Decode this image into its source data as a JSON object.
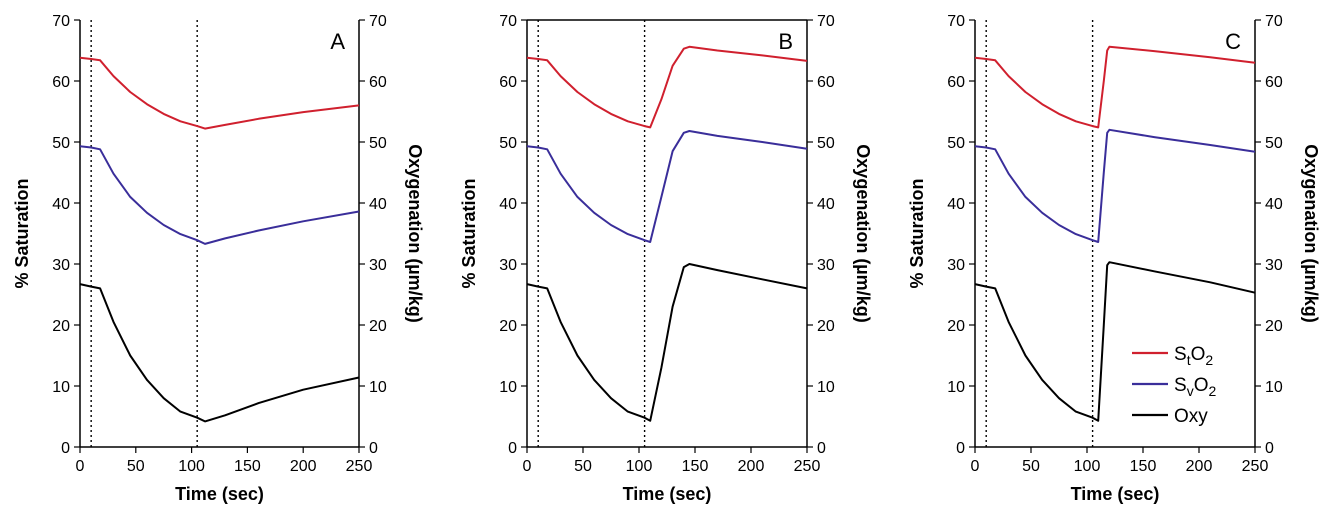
{
  "chart_data": [
    {
      "type": "line",
      "panel_label": "A",
      "xlabel": "Time (sec)",
      "ylabel_left": "% Saturation",
      "ylabel_right": "Oxygenation (µm/kg)",
      "xlim": [
        0,
        250
      ],
      "ylim": [
        0,
        70
      ],
      "xticks": [
        0,
        50,
        100,
        150,
        200,
        250
      ],
      "yticks": [
        0,
        10,
        20,
        30,
        40,
        50,
        60,
        70
      ],
      "vlines": [
        10,
        105
      ],
      "legend": false,
      "series": [
        {
          "key": "sto2",
          "color": "#d0202e",
          "x": [
            0,
            10,
            18,
            30,
            45,
            60,
            75,
            90,
            105,
            112,
            130,
            160,
            200,
            250
          ],
          "y": [
            63.8,
            63.6,
            63.4,
            60.8,
            58.2,
            56.2,
            54.6,
            53.4,
            52.6,
            52.2,
            52.8,
            53.8,
            54.9,
            56.0
          ]
        },
        {
          "key": "svo2",
          "color": "#3a2e9a",
          "x": [
            0,
            10,
            18,
            30,
            45,
            60,
            75,
            90,
            105,
            112,
            130,
            160,
            200,
            250
          ],
          "y": [
            49.3,
            49.1,
            48.8,
            44.8,
            41.0,
            38.4,
            36.4,
            34.9,
            33.9,
            33.3,
            34.2,
            35.5,
            37.0,
            38.6
          ]
        },
        {
          "key": "oxy",
          "color": "#000000",
          "x": [
            0,
            10,
            18,
            30,
            45,
            60,
            75,
            90,
            105,
            112,
            130,
            160,
            200,
            250
          ],
          "y": [
            26.7,
            26.3,
            26.0,
            20.5,
            15.0,
            11.0,
            8.0,
            5.8,
            4.8,
            4.2,
            5.2,
            7.2,
            9.4,
            11.4
          ]
        }
      ]
    },
    {
      "type": "line",
      "panel_label": "B",
      "xlabel": "Time (sec)",
      "ylabel_left": "% Saturation",
      "ylabel_right": "Oxygenation (µm/kg)",
      "xlim": [
        0,
        250
      ],
      "ylim": [
        0,
        70
      ],
      "xticks": [
        0,
        50,
        100,
        150,
        200,
        250
      ],
      "yticks": [
        0,
        10,
        20,
        30,
        40,
        50,
        60,
        70
      ],
      "vlines": [
        10,
        105
      ],
      "legend": false,
      "series": [
        {
          "key": "sto2",
          "color": "#d0202e",
          "x": [
            0,
            10,
            18,
            30,
            45,
            60,
            75,
            90,
            105,
            110,
            120,
            130,
            140,
            145,
            170,
            210,
            250
          ],
          "y": [
            63.8,
            63.6,
            63.4,
            60.8,
            58.2,
            56.2,
            54.6,
            53.4,
            52.6,
            52.4,
            57.0,
            62.5,
            65.3,
            65.6,
            65.0,
            64.2,
            63.3
          ]
        },
        {
          "key": "svo2",
          "color": "#3a2e9a",
          "x": [
            0,
            10,
            18,
            30,
            45,
            60,
            75,
            90,
            105,
            110,
            120,
            130,
            140,
            145,
            170,
            210,
            250
          ],
          "y": [
            49.3,
            49.1,
            48.8,
            44.8,
            41.0,
            38.4,
            36.4,
            34.9,
            33.9,
            33.6,
            41.0,
            48.5,
            51.5,
            51.8,
            51.0,
            50.0,
            48.9
          ]
        },
        {
          "key": "oxy",
          "color": "#000000",
          "x": [
            0,
            10,
            18,
            30,
            45,
            60,
            75,
            90,
            105,
            110,
            120,
            130,
            140,
            145,
            170,
            210,
            250
          ],
          "y": [
            26.7,
            26.3,
            26.0,
            20.5,
            15.0,
            11.0,
            8.0,
            5.8,
            4.8,
            4.3,
            13.0,
            23.0,
            29.5,
            30.0,
            29.0,
            27.5,
            26.0
          ]
        }
      ]
    },
    {
      "type": "line",
      "panel_label": "C",
      "xlabel": "Time (sec)",
      "ylabel_left": "% Saturation",
      "ylabel_right": "Oxygenation (µm/kg)",
      "xlim": [
        0,
        250
      ],
      "ylim": [
        0,
        70
      ],
      "xticks": [
        0,
        50,
        100,
        150,
        200,
        250
      ],
      "yticks": [
        0,
        10,
        20,
        30,
        40,
        50,
        60,
        70
      ],
      "vlines": [
        10,
        105
      ],
      "legend": true,
      "legend_position": "bottom-right",
      "series": [
        {
          "key": "sto2",
          "color": "#d0202e",
          "x": [
            0,
            10,
            18,
            30,
            45,
            60,
            75,
            90,
            105,
            110,
            115,
            118,
            120,
            160,
            210,
            250
          ],
          "y": [
            63.8,
            63.6,
            63.4,
            60.8,
            58.2,
            56.2,
            54.6,
            53.4,
            52.6,
            52.4,
            60.0,
            65.0,
            65.6,
            64.9,
            63.9,
            63.0
          ]
        },
        {
          "key": "svo2",
          "color": "#3a2e9a",
          "x": [
            0,
            10,
            18,
            30,
            45,
            60,
            75,
            90,
            105,
            110,
            115,
            118,
            120,
            160,
            210,
            250
          ],
          "y": [
            49.3,
            49.1,
            48.8,
            44.8,
            41.0,
            38.4,
            36.4,
            34.9,
            33.9,
            33.6,
            45.0,
            51.5,
            52.0,
            50.8,
            49.5,
            48.4
          ]
        },
        {
          "key": "oxy",
          "color": "#000000",
          "x": [
            0,
            10,
            18,
            30,
            45,
            60,
            75,
            90,
            105,
            110,
            115,
            118,
            120,
            160,
            210,
            250
          ],
          "y": [
            26.7,
            26.3,
            26.0,
            20.5,
            15.0,
            11.0,
            8.0,
            5.8,
            4.8,
            4.3,
            20.0,
            29.8,
            30.3,
            28.8,
            27.0,
            25.3
          ]
        }
      ]
    }
  ],
  "legend": {
    "entries": [
      {
        "key": "sto2",
        "base": "S",
        "sub": "t",
        "mid": "O",
        "sub2": "2",
        "color": "#d0202e"
      },
      {
        "key": "svo2",
        "base": "S",
        "sub": "v",
        "mid": "O",
        "sub2": "2",
        "color": "#3a2e9a"
      },
      {
        "key": "oxy",
        "label": "Oxy",
        "color": "#000000"
      }
    ]
  }
}
